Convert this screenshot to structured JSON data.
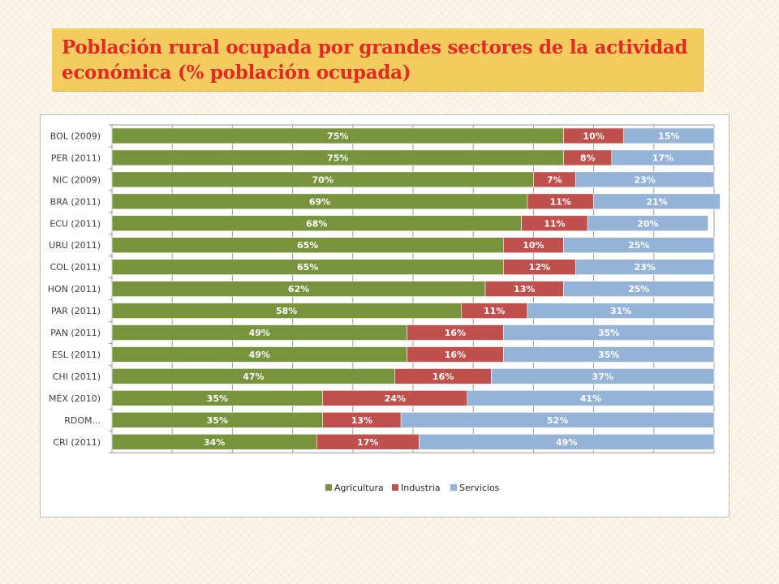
{
  "slide": {
    "title": "Población rural ocupada por grandes sectores de la actividad económica (% población ocupada)"
  },
  "chart_data": {
    "type": "bar",
    "orientation": "horizontal",
    "stacked": true,
    "stack_mode": "percent",
    "title": "",
    "xlabel": "",
    "ylabel": "",
    "xlim": [
      0,
      100
    ],
    "grid": true,
    "legend_position": "bottom",
    "categories": [
      "BOL (2009)",
      "PER (2011)",
      "NIC (2009)",
      "BRA (2011)",
      "ECU (2011)",
      "URU (2011)",
      "COL (2011)",
      "HON (2011)",
      "PAR (2011)",
      "PAN (2011)",
      "ESL (2011)",
      "CHI (2011)",
      "MÉX (2010)",
      "RDOM...",
      "CRI (2011)"
    ],
    "series": [
      {
        "name": "Agricultura",
        "color": "#77933c",
        "values": [
          75,
          75,
          70,
          69,
          68,
          65,
          65,
          62,
          58,
          49,
          49,
          47,
          35,
          35,
          34
        ],
        "labels": [
          "75%",
          "75%",
          "70%",
          "69%",
          "68%",
          "65%",
          "65%",
          "62%",
          "58%",
          "49%",
          "49%",
          "47%",
          "35%",
          "35%",
          "34%"
        ]
      },
      {
        "name": "Industria",
        "color": "#c0504d",
        "values": [
          10,
          8,
          7,
          11,
          11,
          10,
          12,
          13,
          11,
          16,
          16,
          16,
          24,
          13,
          17
        ],
        "labels": [
          "10%",
          "8%",
          "7%",
          "11%",
          "11%",
          "10%",
          "12%",
          "13%",
          "11%",
          "16%",
          "16%",
          "16%",
          "24%",
          "13%",
          "17%"
        ]
      },
      {
        "name": "Servicios",
        "color": "#95b3d7",
        "values": [
          15,
          17,
          23,
          21,
          20,
          25,
          23,
          25,
          31,
          35,
          35,
          37,
          41,
          52,
          49
        ],
        "labels": [
          "15%",
          "17%",
          "23%",
          "21%",
          "20%",
          "25%",
          "23%",
          "25%",
          "31%",
          "35%",
          "35%",
          "37%",
          "41%",
          "52%",
          "49%"
        ]
      }
    ]
  }
}
